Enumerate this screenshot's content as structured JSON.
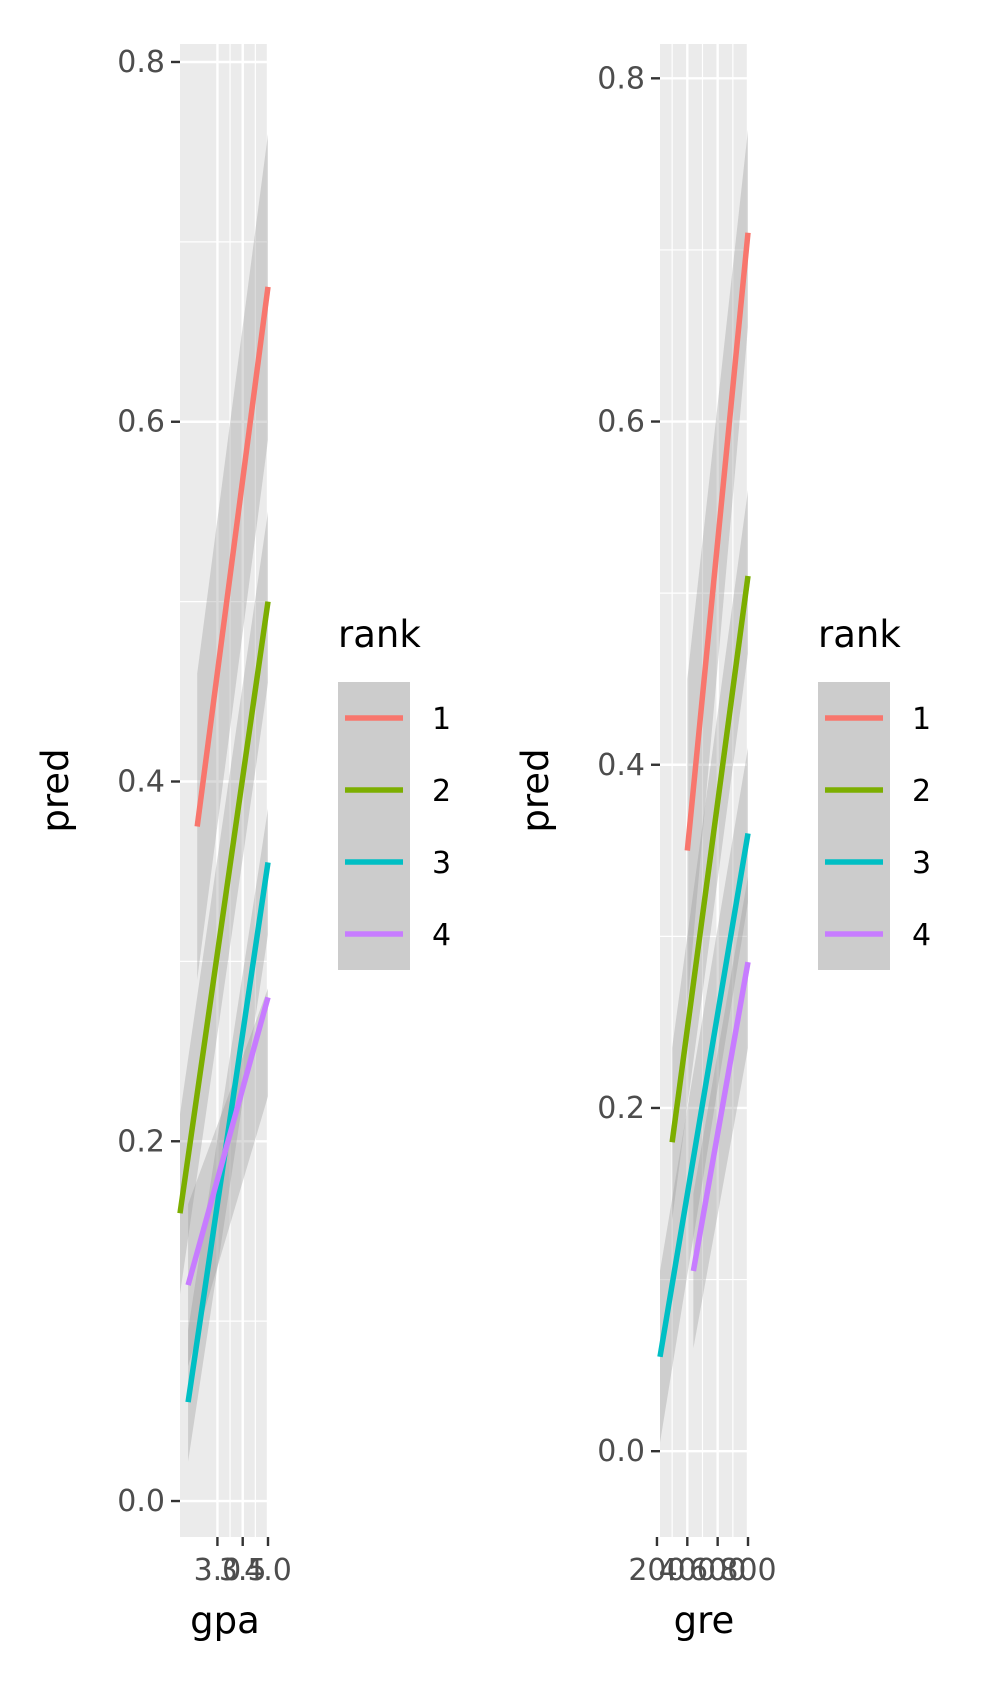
{
  "chart_data": [
    {
      "type": "line",
      "title": "",
      "xlabel": "gpa",
      "ylabel": "pred",
      "xlim": [
        2.26,
        4.0
      ],
      "ylim": [
        -0.02,
        0.81
      ],
      "x_ticks": [
        3.0,
        3.5,
        4.0
      ],
      "x_tick_labels": [
        "3.0",
        "3.5",
        "4.0"
      ],
      "y_ticks": [
        0.0,
        0.2,
        0.4,
        0.6,
        0.8
      ],
      "y_tick_labels": [
        "0.0",
        "0.2",
        "0.4",
        "0.6",
        "0.8"
      ],
      "grid": true,
      "confidence_band": true,
      "legend": {
        "title": "rank",
        "position": "right"
      },
      "series": [
        {
          "name": "1",
          "color": "#F8766D",
          "x": [
            2.6,
            4.0
          ],
          "y": [
            0.375,
            0.675
          ],
          "lower": [
            0.29,
            0.59
          ],
          "upper": [
            0.46,
            0.76
          ]
        },
        {
          "name": "2",
          "color": "#7CAE00",
          "x": [
            2.26,
            4.0
          ],
          "y": [
            0.16,
            0.5
          ],
          "lower": [
            0.115,
            0.455
          ],
          "upper": [
            0.215,
            0.55
          ]
        },
        {
          "name": "3",
          "color": "#00BFC4",
          "x": [
            2.42,
            4.0
          ],
          "y": [
            0.055,
            0.355
          ],
          "lower": [
            0.022,
            0.315
          ],
          "upper": [
            0.095,
            0.385
          ]
        },
        {
          "name": "4",
          "color": "#C77CFF",
          "x": [
            2.42,
            4.0
          ],
          "y": [
            0.12,
            0.28
          ],
          "lower": [
            0.075,
            0.225
          ],
          "upper": [
            0.165,
            0.285
          ]
        }
      ]
    },
    {
      "type": "line",
      "title": "",
      "xlabel": "gre",
      "ylabel": "pred",
      "xlim": [
        220,
        800
      ],
      "ylim": [
        -0.05,
        0.82
      ],
      "x_ticks": [
        200,
        400,
        600,
        800
      ],
      "x_tick_labels": [
        "200",
        "400",
        "600",
        "800"
      ],
      "y_ticks": [
        0.0,
        0.2,
        0.4,
        0.6,
        0.8
      ],
      "y_tick_labels": [
        "0.0",
        "0.2",
        "0.4",
        "0.6",
        "0.8"
      ],
      "grid": true,
      "confidence_band": true,
      "legend": {
        "title": "rank",
        "position": "right"
      },
      "series": [
        {
          "name": "1",
          "color": "#F8766D",
          "x": [
            400,
            800
          ],
          "y": [
            0.35,
            0.71
          ],
          "lower": [
            0.26,
            0.655
          ],
          "upper": [
            0.45,
            0.77
          ]
        },
        {
          "name": "2",
          "color": "#7CAE00",
          "x": [
            300,
            800
          ],
          "y": [
            0.18,
            0.51
          ],
          "lower": [
            0.135,
            0.465
          ],
          "upper": [
            0.235,
            0.56
          ]
        },
        {
          "name": "3",
          "color": "#00BFC4",
          "x": [
            220,
            800
          ],
          "y": [
            0.055,
            0.36
          ],
          "lower": [
            0.005,
            0.32
          ],
          "upper": [
            0.105,
            0.41
          ]
        },
        {
          "name": "4",
          "color": "#C77CFF",
          "x": [
            440,
            800
          ],
          "y": [
            0.105,
            0.285
          ],
          "lower": [
            0.06,
            0.235
          ],
          "upper": [
            0.15,
            0.335
          ]
        }
      ]
    }
  ]
}
